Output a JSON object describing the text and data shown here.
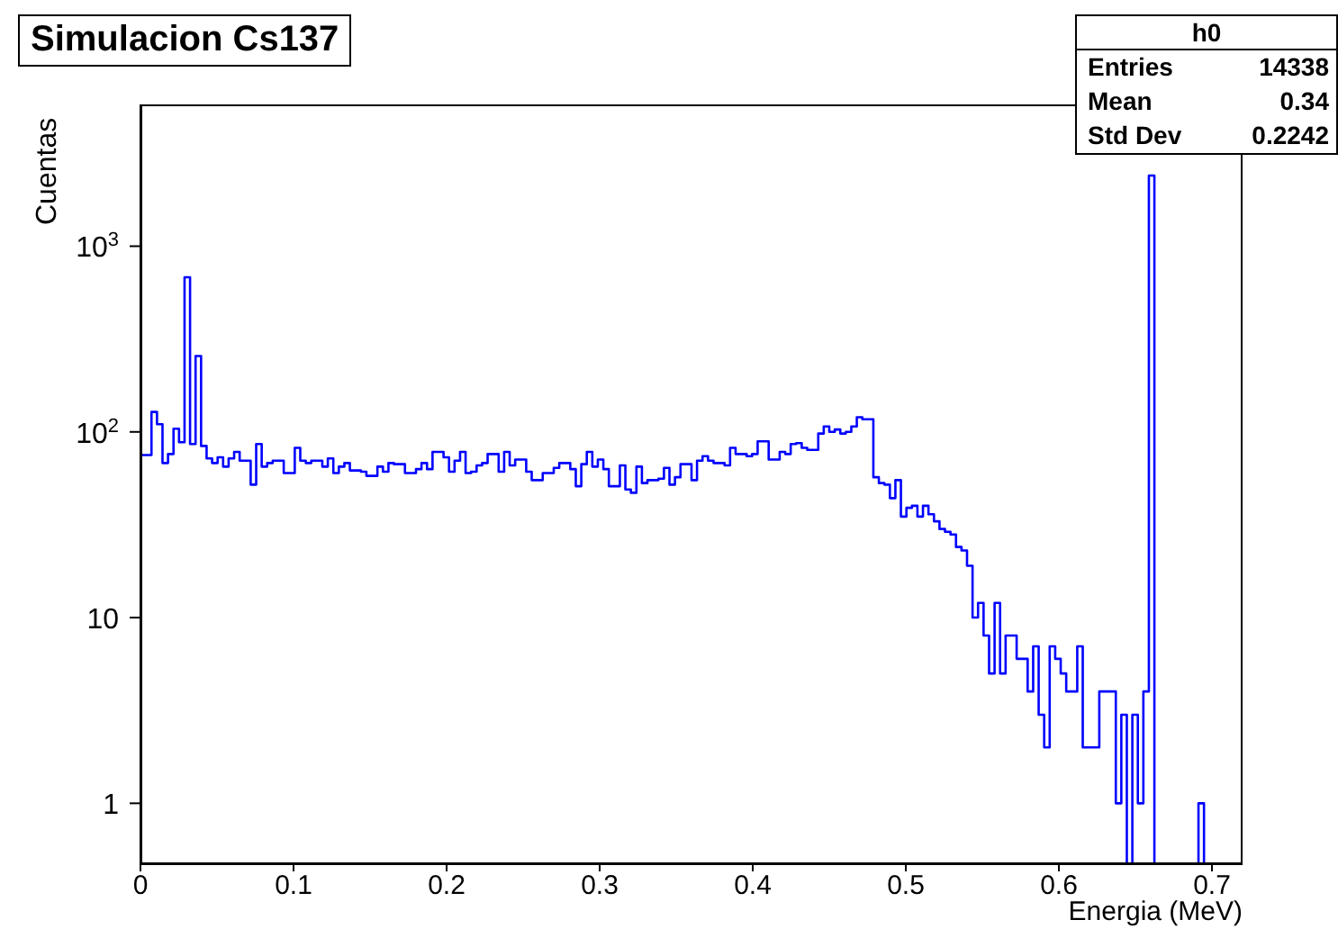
{
  "chart_data": {
    "type": "histogram",
    "title": "Simulacion Cs137",
    "xlabel": "Energia (MeV)",
    "ylabel": "Cuentas",
    "bins": [
      0,
      0.0036,
      0.0072,
      0.0108,
      0.0144,
      0.018,
      0.0216,
      0.0252,
      0.0288,
      0.0324,
      0.036,
      0.0396,
      0.0432,
      0.0468,
      0.0504,
      0.054,
      0.0576,
      0.0612,
      0.0648,
      0.0684,
      0.072,
      0.0756,
      0.0792,
      0.0828,
      0.0864,
      0.09,
      0.0936,
      0.0972,
      0.1008,
      0.1044,
      0.108,
      0.1116,
      0.1152,
      0.1188,
      0.1224,
      0.126,
      0.1296,
      0.1332,
      0.1368,
      0.1404,
      0.144,
      0.1476,
      0.1512,
      0.1548,
      0.1584,
      0.162,
      0.1656,
      0.1692,
      0.1728,
      0.1764,
      0.18,
      0.1836,
      0.1872,
      0.1908,
      0.1944,
      0.198,
      0.2016,
      0.2052,
      0.2088,
      0.2124,
      0.216,
      0.2196,
      0.2232,
      0.2268,
      0.2304,
      0.234,
      0.2376,
      0.2412,
      0.2448,
      0.2484,
      0.252,
      0.2556,
      0.2592,
      0.2628,
      0.2664,
      0.27,
      0.2736,
      0.2772,
      0.2808,
      0.2844,
      0.288,
      0.2916,
      0.2952,
      0.2988,
      0.3024,
      0.306,
      0.3096,
      0.3132,
      0.3168,
      0.3204,
      0.324,
      0.3276,
      0.3312,
      0.3348,
      0.3384,
      0.342,
      0.3456,
      0.3492,
      0.3528,
      0.3564,
      0.36,
      0.3636,
      0.3672,
      0.3708,
      0.3744,
      0.378,
      0.3816,
      0.3852,
      0.3888,
      0.3924,
      0.396,
      0.3996,
      0.4032,
      0.4068,
      0.4104,
      0.414,
      0.4176,
      0.4212,
      0.4248,
      0.4284,
      0.432,
      0.4356,
      0.4392,
      0.4428,
      0.4464,
      0.45,
      0.4536,
      0.4572,
      0.4608,
      0.4644,
      0.468,
      0.4716,
      0.4752,
      0.4788,
      0.4824,
      0.486,
      0.4896,
      0.4932,
      0.4968,
      0.5004,
      0.504,
      0.5076,
      0.5112,
      0.5148,
      0.5184,
      0.522,
      0.5256,
      0.5292,
      0.5328,
      0.5364,
      0.54,
      0.5436,
      0.5472,
      0.5508,
      0.5544,
      0.558,
      0.5616,
      0.5652,
      0.5688,
      0.5724,
      0.576,
      0.5796,
      0.5832,
      0.5868,
      0.5904,
      0.594,
      0.5976,
      0.6012,
      0.6048,
      0.6084,
      0.612,
      0.6156,
      0.6192,
      0.6228,
      0.6264,
      0.63,
      0.6336,
      0.6372,
      0.6408,
      0.6444,
      0.648,
      0.6516,
      0.6552,
      0.6588,
      0.6624,
      0.666,
      0.6696,
      0.6732,
      0.6768,
      0.6804,
      0.684,
      0.6876,
      0.6912,
      0.6948,
      0.6984,
      0.702,
      0.7056,
      0.7092,
      0.7128,
      0.7164,
      0.72
    ],
    "values": [
      75,
      75,
      128,
      110,
      68,
      76,
      104,
      88,
      680,
      86,
      256,
      84,
      72,
      68,
      73,
      65,
      72,
      78,
      70,
      70,
      52,
      86,
      65,
      68,
      70,
      70,
      60,
      60,
      82,
      70,
      68,
      70,
      70,
      65,
      72,
      60,
      65,
      68,
      62,
      62,
      61,
      58,
      58,
      65,
      61,
      68,
      67,
      67,
      60,
      60,
      63,
      68,
      63,
      78,
      78,
      73,
      61,
      70,
      78,
      60,
      61,
      66,
      68,
      76,
      76,
      61,
      78,
      66,
      71,
      71,
      61,
      55,
      55,
      60,
      60,
      64,
      68,
      68,
      63,
      51,
      67,
      78,
      65,
      71,
      63,
      51,
      51,
      66,
      49,
      47,
      65,
      53,
      55,
      55,
      56,
      64,
      52,
      57,
      67,
      67,
      55,
      70,
      74,
      70,
      68,
      68,
      66,
      82,
      76,
      76,
      74,
      76,
      89,
      89,
      71,
      71,
      78,
      76,
      86,
      87,
      82,
      80,
      80,
      98,
      107,
      100,
      103,
      98,
      100,
      107,
      120,
      117,
      117,
      57,
      53,
      52,
      44,
      55,
      35,
      39,
      40,
      35,
      40,
      36,
      33,
      30,
      29,
      28,
      24,
      23,
      19,
      10,
      12,
      8,
      5,
      12,
      5,
      8,
      8,
      6,
      6,
      4,
      7,
      3,
      2,
      7,
      6,
      5,
      4,
      4,
      7,
      2,
      2,
      2,
      4,
      4,
      4,
      1,
      3,
      null,
      3,
      1,
      4,
      2400,
      null,
      null,
      null,
      null,
      null,
      null,
      null,
      null,
      1,
      null,
      null,
      null,
      null,
      null,
      null,
      null
    ],
    "color": "#0000ff",
    "xlim": [
      0,
      0.72
    ],
    "xticks": [
      0,
      0.1,
      0.2,
      0.3,
      0.4,
      0.5,
      0.6,
      0.7
    ],
    "ylim": [
      0.47,
      5800
    ],
    "yticks": [
      1,
      10,
      {
        "value": 100,
        "label": "10$^{2}$"
      },
      {
        "value": 1000,
        "label": "10$^{3}$"
      }
    ],
    "log": true,
    "grid": false,
    "legend": false,
    "annotations": [
      "h0",
      "Entries",
      "14338",
      "Mean",
      "0.34",
      "Std Dev",
      "0.2242"
    ]
  }
}
